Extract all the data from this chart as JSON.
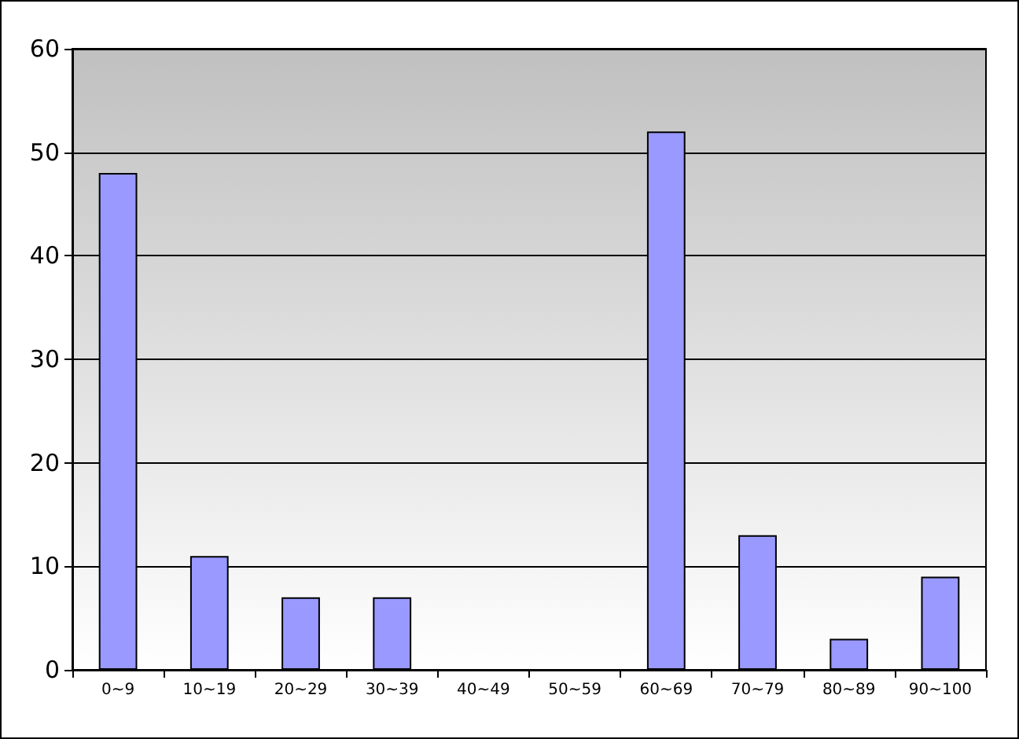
{
  "chart_data": {
    "type": "bar",
    "categories": [
      "0~9",
      "10~19",
      "20~29",
      "30~39",
      "40~49",
      "50~59",
      "60~69",
      "70~79",
      "80~89",
      "90~100"
    ],
    "values": [
      48,
      11,
      7,
      7,
      0,
      0,
      52,
      13,
      3,
      9
    ],
    "color": "#9999ff",
    "ylim": [
      0,
      60
    ],
    "yticks": [
      0,
      10,
      20,
      30,
      40,
      50,
      60
    ],
    "grid": "y"
  }
}
